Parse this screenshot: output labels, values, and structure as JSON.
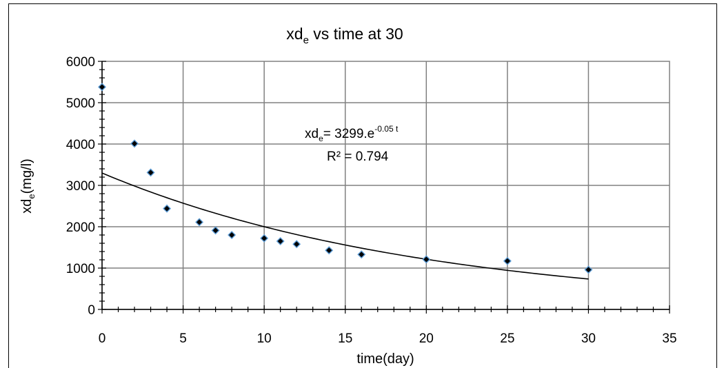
{
  "chart_data": {
    "type": "scatter",
    "title": "xd",
    "title_sub": "e",
    "title_rest": " vs time at 30",
    "xlabel": "time(day)",
    "ylabel": "xd",
    "ylabel_sub": "e",
    "ylabel_rest": "(mg/l)",
    "xlim": [
      0,
      35
    ],
    "ylim": [
      0,
      6000
    ],
    "x_ticks": [
      "0",
      "5",
      "10",
      "15",
      "20",
      "25",
      "30",
      "35"
    ],
    "y_ticks": [
      "0",
      "1000",
      "2000",
      "3000",
      "4000",
      "5000",
      "6000"
    ],
    "grid": true,
    "marker": "diamond",
    "marker_fill": "#000000",
    "marker_edge": "#5b9bd5",
    "series": [
      {
        "x": [
          0,
          2,
          3,
          4,
          6,
          7,
          8,
          10,
          11,
          12,
          14,
          16,
          20,
          25,
          30
        ],
        "y": [
          5380,
          4010,
          3310,
          2440,
          2110,
          1910,
          1800,
          1720,
          1650,
          1580,
          1430,
          1330,
          1210,
          1170,
          960
        ]
      }
    ],
    "trendline": {
      "type": "exponential",
      "a": 3299,
      "b": -0.05,
      "x_range": [
        0,
        30
      ],
      "equation_main": "xd",
      "equation_sub": "e",
      "equation_mid": "= 3299.e",
      "equation_sup": "-0.05 t",
      "r2_label": "R² = 0.794"
    }
  }
}
